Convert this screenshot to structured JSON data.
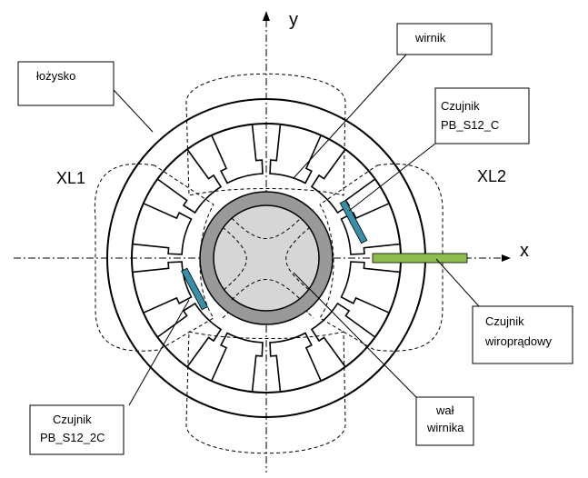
{
  "axes": {
    "x": "x",
    "y": "y"
  },
  "regions": {
    "left": "XL1",
    "right": "XL2"
  },
  "labels": {
    "bearing": "łożysko",
    "rotor": "wirnik",
    "sensor_top_line1": "Czujnik",
    "sensor_top_line2": "PB_S12_C",
    "sensor_eddy_line1": "Czujnik",
    "sensor_eddy_line2": "wiroprądowy",
    "shaft_line1": "wał",
    "shaft_line2": "wirnika",
    "sensor_bottom_line1": "Czujnik",
    "sensor_bottom_line2": "PB_S12_2C"
  },
  "colors": {
    "hall_sensor": "#3a8fa8",
    "eddy_sensor": "#8fbc4f",
    "rotor_ring": "#999999",
    "shaft": "#d6d6d6"
  },
  "stator_pole_count": 12
}
